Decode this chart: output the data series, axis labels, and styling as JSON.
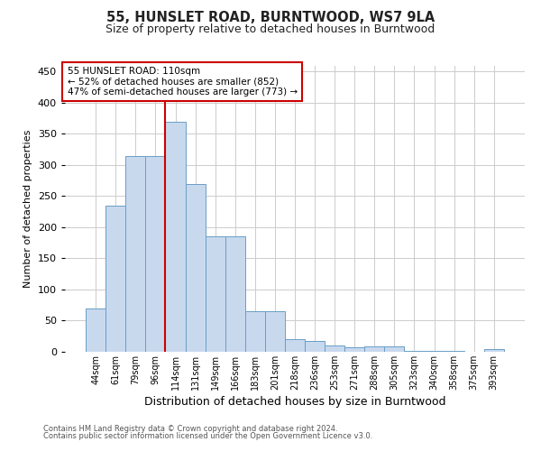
{
  "title": "55, HUNSLET ROAD, BURNTWOOD, WS7 9LA",
  "subtitle": "Size of property relative to detached houses in Burntwood",
  "xlabel": "Distribution of detached houses by size in Burntwood",
  "ylabel": "Number of detached properties",
  "categories": [
    "44sqm",
    "61sqm",
    "79sqm",
    "96sqm",
    "114sqm",
    "131sqm",
    "149sqm",
    "166sqm",
    "183sqm",
    "201sqm",
    "218sqm",
    "236sqm",
    "253sqm",
    "271sqm",
    "288sqm",
    "305sqm",
    "323sqm",
    "340sqm",
    "358sqm",
    "375sqm",
    "393sqm"
  ],
  "values": [
    70,
    235,
    315,
    315,
    370,
    270,
    185,
    185,
    65,
    65,
    20,
    17,
    10,
    7,
    9,
    9,
    2,
    2,
    2,
    0,
    4
  ],
  "bar_color": "#c8d9ee",
  "bar_edge_color": "#6a9ec5",
  "property_label": "55 HUNSLET ROAD: 110sqm",
  "annotation_line1": "← 52% of detached houses are smaller (852)",
  "annotation_line2": "47% of semi-detached houses are larger (773) →",
  "vline_x_index": 4,
  "vline_color": "#cc0000",
  "annotation_box_edge_color": "#cc0000",
  "ylim": [
    0,
    460
  ],
  "yticks": [
    0,
    50,
    100,
    150,
    200,
    250,
    300,
    350,
    400,
    450
  ],
  "footer_line1": "Contains HM Land Registry data © Crown copyright and database right 2024.",
  "footer_line2": "Contains public sector information licensed under the Open Government Licence v3.0.",
  "background_color": "#ffffff",
  "grid_color": "#cccccc"
}
